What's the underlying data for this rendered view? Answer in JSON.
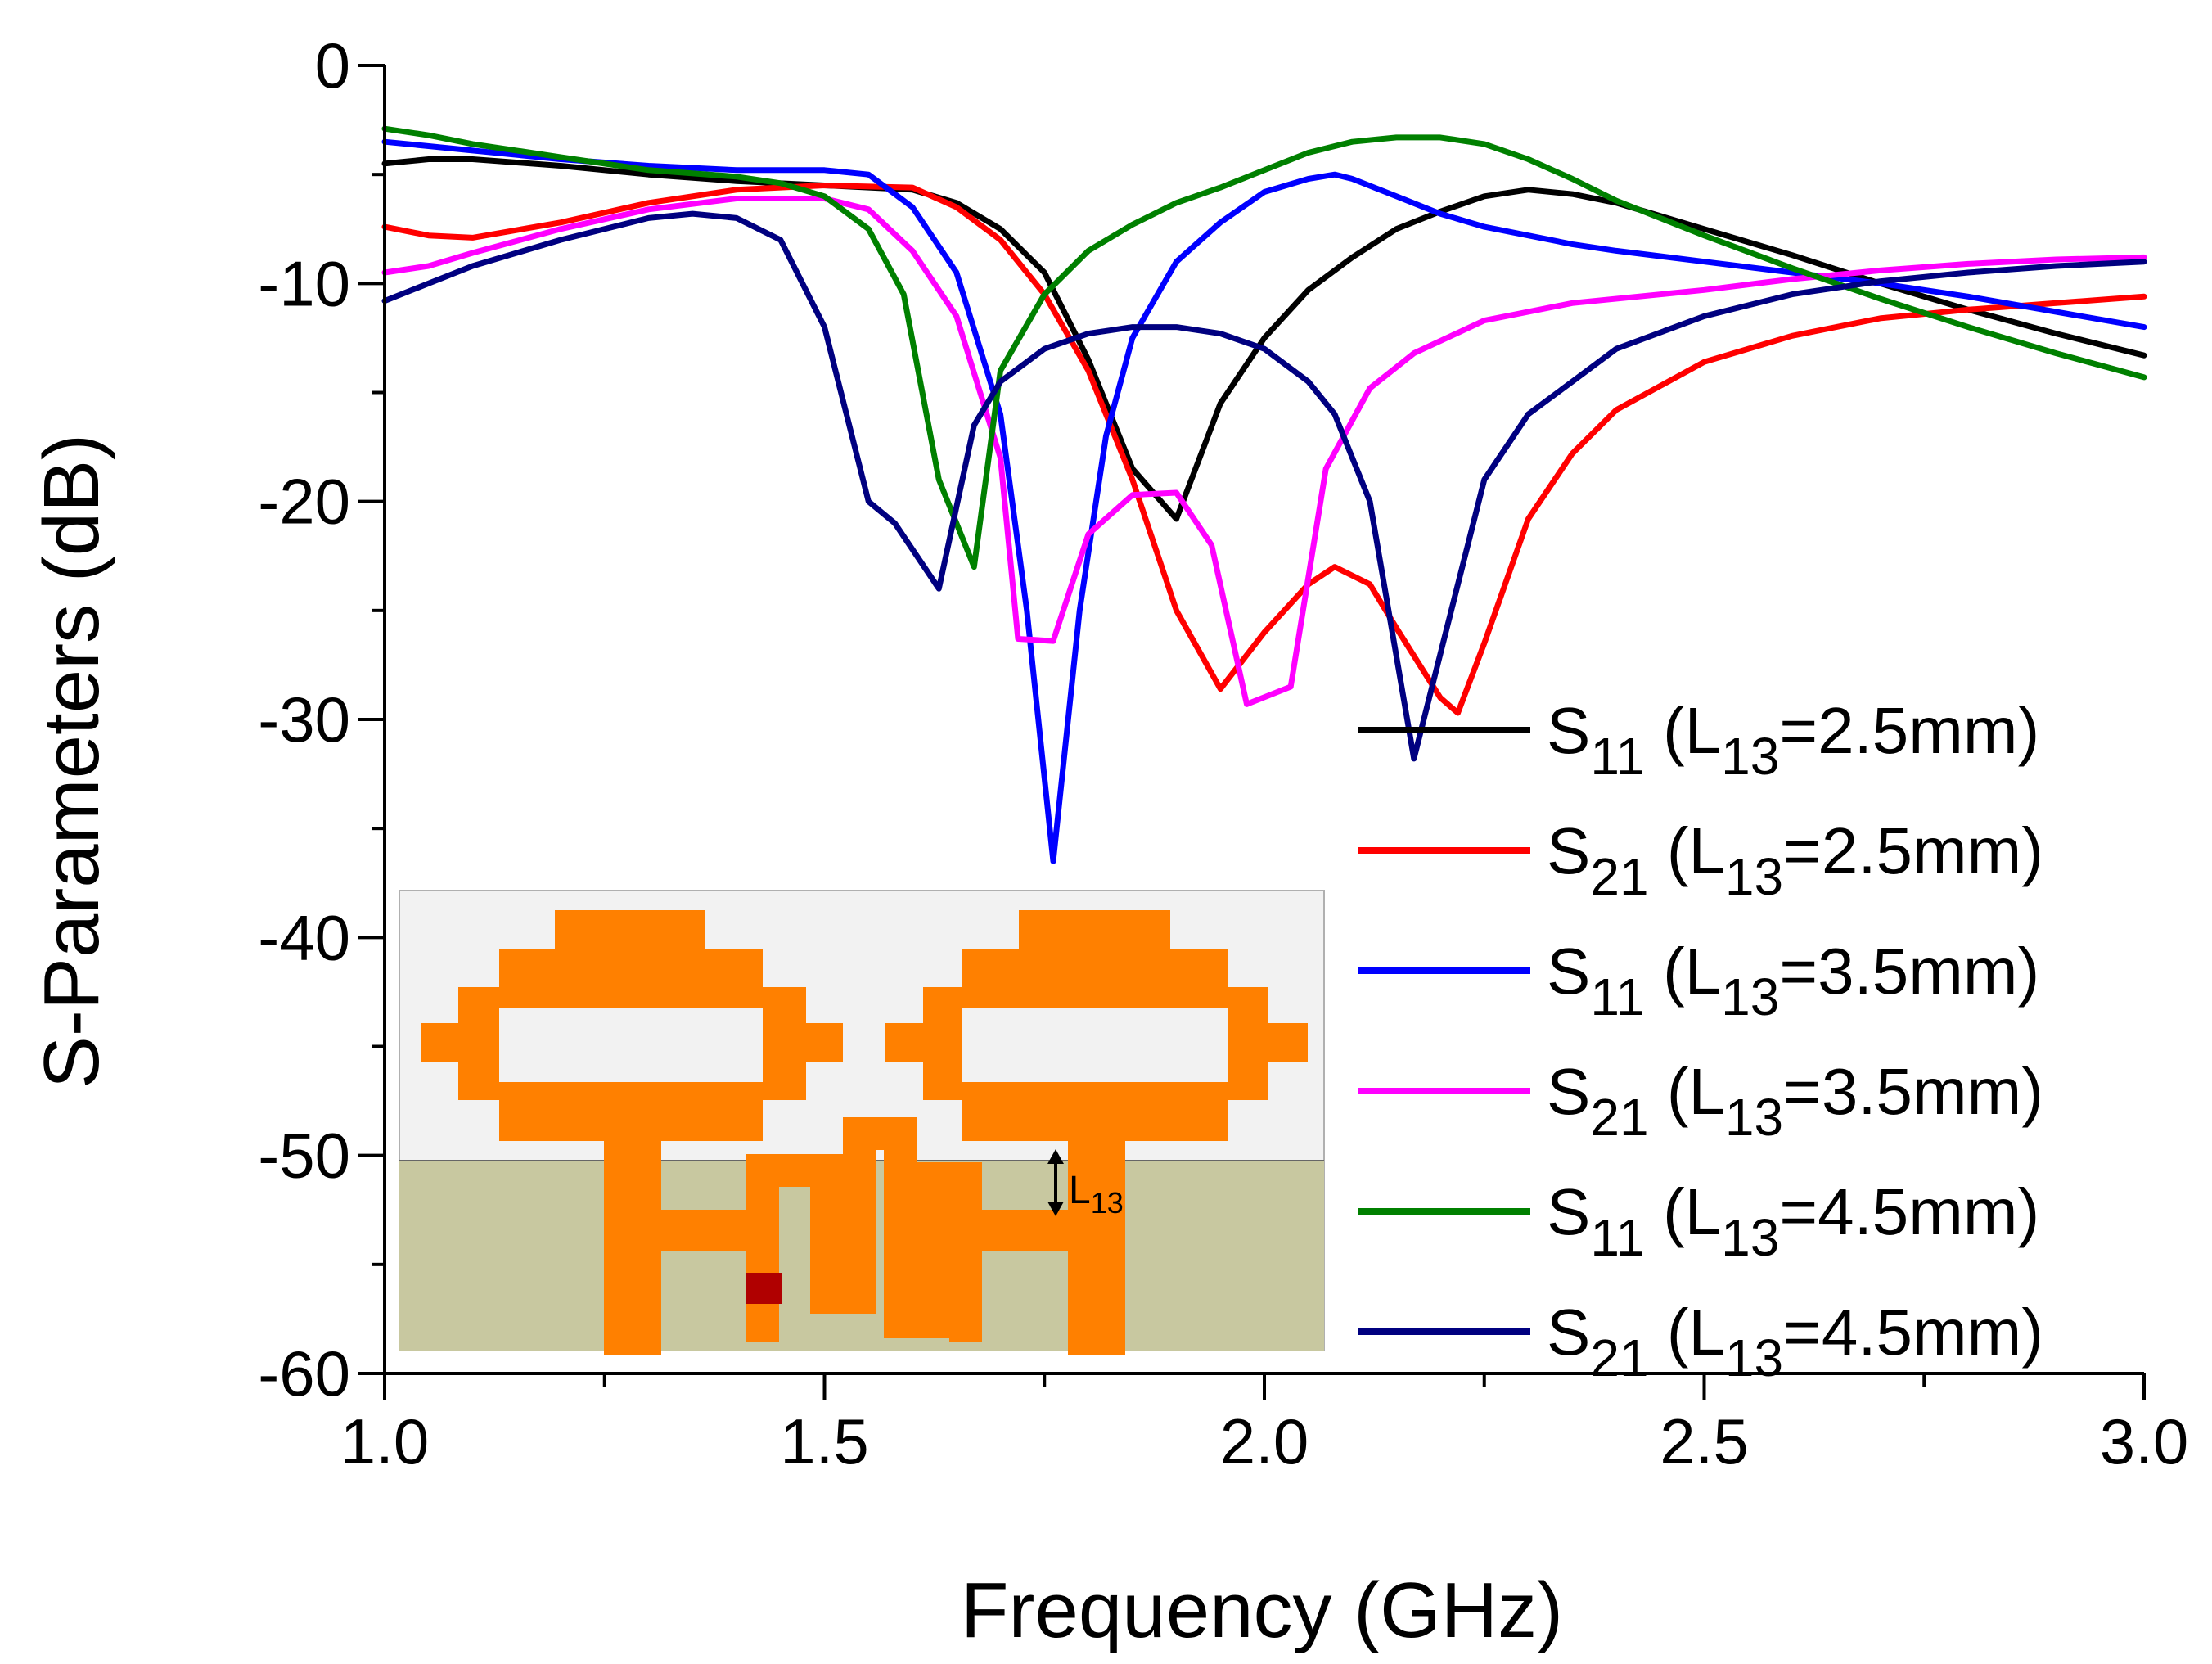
{
  "chart_data": {
    "type": "line",
    "title": "",
    "xlabel": "Frequency (GHz)",
    "ylabel": "S-Parameters (dB)",
    "xlim": [
      1.0,
      3.0
    ],
    "ylim": [
      -60,
      0
    ],
    "x_ticks": [
      1.0,
      1.5,
      2.0,
      2.5,
      3.0
    ],
    "x_tick_labels": [
      "1.0",
      "1.5",
      "2.0",
      "2.5",
      "3.0"
    ],
    "y_ticks": [
      0,
      -10,
      -20,
      -30,
      -40,
      -50,
      -60
    ],
    "y_tick_labels": [
      "0",
      "-10",
      "-20",
      "-30",
      "-40",
      "-50",
      "-60"
    ],
    "legend_position": "right",
    "series": [
      {
        "name": "S11 (L13=2.5mm)",
        "param": "S",
        "param_sub": "11",
        "len": "L",
        "len_sub": "13",
        "value": "=2.5mm)",
        "color": "#000000",
        "x": [
          1.0,
          1.05,
          1.1,
          1.2,
          1.3,
          1.4,
          1.5,
          1.6,
          1.65,
          1.7,
          1.75,
          1.8,
          1.85,
          1.9,
          1.95,
          2.0,
          2.05,
          2.1,
          2.15,
          2.2,
          2.25,
          2.3,
          2.35,
          2.4,
          2.5,
          2.6,
          2.7,
          2.8,
          2.9,
          3.0
        ],
        "y": [
          -4.5,
          -4.3,
          -4.3,
          -4.6,
          -5.0,
          -5.3,
          -5.5,
          -5.7,
          -6.3,
          -7.5,
          -9.5,
          -13.5,
          -18.5,
          -20.8,
          -15.5,
          -12.5,
          -10.3,
          -8.8,
          -7.5,
          -6.7,
          -6.0,
          -5.7,
          -5.9,
          -6.3,
          -7.5,
          -8.7,
          -10.0,
          -11.2,
          -12.3,
          -13.3
        ]
      },
      {
        "name": "S21 (L13=2.5mm)",
        "param": "S",
        "param_sub": "21",
        "len": "L",
        "len_sub": "13",
        "value": "=2.5mm)",
        "color": "#ff0000",
        "x": [
          1.0,
          1.05,
          1.1,
          1.2,
          1.3,
          1.4,
          1.5,
          1.6,
          1.65,
          1.7,
          1.75,
          1.8,
          1.85,
          1.9,
          1.95,
          2.0,
          2.05,
          2.08,
          2.12,
          2.15,
          2.2,
          2.22,
          2.25,
          2.3,
          2.35,
          2.4,
          2.5,
          2.6,
          2.7,
          2.8,
          2.9,
          3.0
        ],
        "y": [
          -7.4,
          -7.8,
          -7.9,
          -7.2,
          -6.3,
          -5.7,
          -5.5,
          -5.6,
          -6.5,
          -8.0,
          -10.5,
          -14.0,
          -19.0,
          -25.0,
          -28.6,
          -26.0,
          -23.8,
          -23.0,
          -23.8,
          -25.8,
          -29.0,
          -29.7,
          -26.5,
          -20.8,
          -17.8,
          -15.8,
          -13.6,
          -12.4,
          -11.6,
          -11.2,
          -10.9,
          -10.6
        ]
      },
      {
        "name": "S11 (L13=3.5mm)",
        "param": "S",
        "param_sub": "11",
        "len": "L",
        "len_sub": "13",
        "value": "=3.5mm)",
        "color": "#0000ff",
        "x": [
          1.0,
          1.05,
          1.1,
          1.2,
          1.3,
          1.4,
          1.5,
          1.55,
          1.6,
          1.65,
          1.7,
          1.73,
          1.76,
          1.79,
          1.82,
          1.85,
          1.9,
          1.95,
          2.0,
          2.05,
          2.08,
          2.1,
          2.15,
          2.2,
          2.25,
          2.3,
          2.35,
          2.4,
          2.5,
          2.6,
          2.7,
          2.8,
          2.9,
          3.0
        ],
        "y": [
          -3.5,
          -3.7,
          -3.9,
          -4.3,
          -4.6,
          -4.8,
          -4.8,
          -5.0,
          -6.5,
          -9.5,
          -16.0,
          -25.0,
          -36.5,
          -25.0,
          -17.0,
          -12.5,
          -9.0,
          -7.2,
          -5.8,
          -5.2,
          -5.0,
          -5.2,
          -6.0,
          -6.8,
          -7.4,
          -7.8,
          -8.2,
          -8.5,
          -9.0,
          -9.5,
          -10.0,
          -10.6,
          -11.3,
          -12.0
        ]
      },
      {
        "name": "S21 (L13=3.5mm)",
        "param": "S",
        "param_sub": "21",
        "len": "L",
        "len_sub": "13",
        "value": "=3.5mm)",
        "color": "#ff00ff",
        "x": [
          1.0,
          1.05,
          1.1,
          1.2,
          1.3,
          1.4,
          1.5,
          1.55,
          1.6,
          1.65,
          1.7,
          1.72,
          1.76,
          1.8,
          1.85,
          1.9,
          1.94,
          1.98,
          2.03,
          2.07,
          2.12,
          2.17,
          2.25,
          2.35,
          2.5,
          2.6,
          2.7,
          2.8,
          2.9,
          3.0
        ],
        "y": [
          -9.5,
          -9.2,
          -8.6,
          -7.5,
          -6.6,
          -6.1,
          -6.1,
          -6.6,
          -8.5,
          -11.5,
          -18.0,
          -26.3,
          -26.4,
          -21.5,
          -19.7,
          -19.6,
          -22.0,
          -29.3,
          -28.5,
          -18.5,
          -14.8,
          -13.2,
          -11.7,
          -10.9,
          -10.3,
          -9.8,
          -9.4,
          -9.1,
          -8.9,
          -8.8
        ]
      },
      {
        "name": "S11 (L13=4.5mm)",
        "param": "S",
        "param_sub": "11",
        "len": "L",
        "len_sub": "13",
        "value": "=4.5mm)",
        "color": "#008000",
        "x": [
          1.0,
          1.05,
          1.1,
          1.2,
          1.3,
          1.4,
          1.45,
          1.5,
          1.55,
          1.59,
          1.63,
          1.67,
          1.7,
          1.75,
          1.8,
          1.85,
          1.9,
          1.95,
          2.0,
          2.05,
          2.1,
          2.15,
          2.2,
          2.25,
          2.3,
          2.35,
          2.4,
          2.5,
          2.6,
          2.7,
          2.8,
          2.9,
          3.0
        ],
        "y": [
          -2.9,
          -3.2,
          -3.6,
          -4.2,
          -4.8,
          -5.1,
          -5.4,
          -6.0,
          -7.5,
          -10.5,
          -19.0,
          -23.0,
          -14.0,
          -10.5,
          -8.5,
          -7.3,
          -6.3,
          -5.6,
          -4.8,
          -4.0,
          -3.5,
          -3.3,
          -3.3,
          -3.6,
          -4.3,
          -5.2,
          -6.2,
          -7.8,
          -9.3,
          -10.7,
          -12.0,
          -13.2,
          -14.3
        ]
      },
      {
        "name": "S21 (L13=4.5mm)",
        "param": "S",
        "param_sub": "21",
        "len": "L",
        "len_sub": "13",
        "value": "=4.5mm)",
        "color": "#000080",
        "x": [
          1.0,
          1.05,
          1.1,
          1.2,
          1.3,
          1.35,
          1.4,
          1.45,
          1.5,
          1.55,
          1.58,
          1.63,
          1.67,
          1.7,
          1.75,
          1.8,
          1.85,
          1.9,
          1.95,
          2.0,
          2.05,
          2.08,
          2.12,
          2.17,
          2.2,
          2.25,
          2.3,
          2.35,
          2.4,
          2.5,
          2.6,
          2.7,
          2.8,
          2.9,
          3.0
        ],
        "y": [
          -10.8,
          -10.0,
          -9.2,
          -8.0,
          -7.0,
          -6.8,
          -7.0,
          -8.0,
          -12.0,
          -20.0,
          -21.0,
          -24.0,
          -16.5,
          -14.5,
          -13.0,
          -12.3,
          -12.0,
          -12.0,
          -12.3,
          -13.0,
          -14.5,
          -16.0,
          -20.0,
          -31.8,
          -27.0,
          -19.0,
          -16.0,
          -14.5,
          -13.0,
          -11.5,
          -10.5,
          -9.9,
          -9.5,
          -9.2,
          -9.0
        ]
      }
    ]
  },
  "inset": {
    "dimension_label": "L",
    "dimension_sub": "13",
    "colors": {
      "substrate_top": "#f2f2f2",
      "ground": "#c8c8a0",
      "metal": "#ff8000",
      "port": "#b00000"
    }
  }
}
